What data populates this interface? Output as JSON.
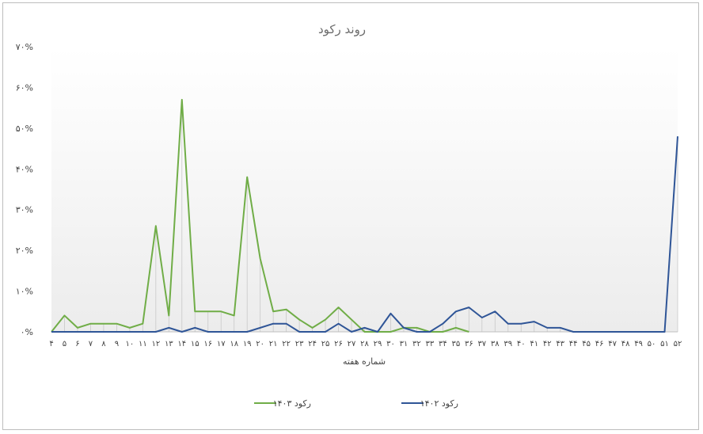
{
  "chart_data": {
    "type": "line",
    "title": "روند رکود",
    "xlabel": "شماره هفته",
    "ylabel": "",
    "ylim": [
      0,
      70
    ],
    "y_ticks": [
      "۰%",
      "۱۰%",
      "۲۰%",
      "۳۰%",
      "۴۰%",
      "۵۰%",
      "۶۰%",
      "۷۰%"
    ],
    "categories": [
      "۴",
      "۵",
      "۶",
      "۷",
      "۸",
      "۹",
      "۱۰",
      "۱۱",
      "۱۲",
      "۱۳",
      "۱۴",
      "۱۵",
      "۱۶",
      "۱۷",
      "۱۸",
      "۱۹",
      "۲۰",
      "۲۱",
      "۲۲",
      "۲۳",
      "۲۴",
      "۲۵",
      "۲۶",
      "۲۷",
      "۲۸",
      "۲۹",
      "۳۰",
      "۳۱",
      "۳۲",
      "۳۳",
      "۳۴",
      "۳۵",
      "۳۶",
      "۳۷",
      "۳۸",
      "۳۹",
      "۴۰",
      "۴۱",
      "۴۲",
      "۴۳",
      "۴۴",
      "۴۵",
      "۴۶",
      "۴۷",
      "۴۸",
      "۴۹",
      "۵۰",
      "۵۱",
      "۵۲"
    ],
    "series": [
      {
        "name": "رکود ۱۴۰۳",
        "color": "#70ad47",
        "values": [
          0,
          4,
          1,
          2,
          2,
          2,
          1,
          2,
          26,
          4,
          57,
          5,
          5,
          5,
          4,
          38,
          18,
          5,
          5.5,
          3,
          1,
          3,
          6,
          3,
          0,
          0,
          0,
          1,
          1,
          0,
          0,
          1,
          0,
          null,
          null,
          null,
          null,
          null,
          null,
          null,
          null,
          null,
          null,
          null,
          null,
          null,
          null,
          null,
          null
        ]
      },
      {
        "name": "رکود ۱۴۰۲",
        "color": "#2f5597",
        "values": [
          0,
          0,
          0,
          0,
          0,
          0,
          0,
          0,
          0,
          1,
          0,
          1,
          0,
          0,
          0,
          0,
          1,
          2,
          2,
          0,
          0,
          0,
          2,
          0,
          1,
          0,
          4.5,
          1,
          0,
          0,
          2,
          5,
          6,
          3.5,
          5,
          2,
          2,
          2.5,
          1,
          1,
          0,
          0,
          0,
          0,
          0,
          0,
          0,
          0,
          48
        ]
      }
    ],
    "grid": false,
    "drop_lines": true,
    "background": "gradient",
    "legend_position": "bottom"
  }
}
